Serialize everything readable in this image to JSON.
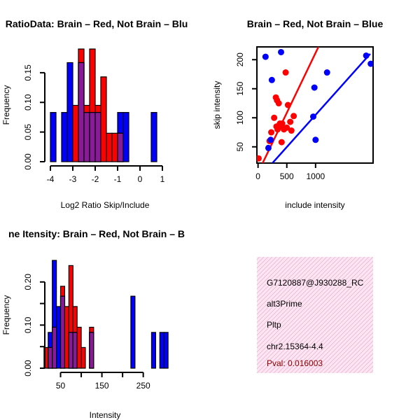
{
  "colors": {
    "red": "#ff0000",
    "blue": "#0000ff",
    "overlap": "#8b1a9a",
    "pval": "#8b0000",
    "info_bg": "#fbe3f2"
  },
  "chart_data": [
    {
      "id": "hist_ratio",
      "type": "bar",
      "title": "RatioData: Brain – Red, Not Brain – Blu",
      "xlabel": "Log2 Ratio Skip/Include",
      "ylabel": "Frequency",
      "xlim": [
        -4,
        1
      ],
      "ylim": [
        0,
        0.19
      ],
      "xticks": [
        -4,
        -3,
        -2,
        -1,
        0,
        1
      ],
      "yticks": [
        0.0,
        0.05,
        0.1,
        0.15
      ],
      "ytick_labels": [
        "0.00",
        "0.05",
        "0.10",
        "0.15"
      ],
      "bin_edges": [
        -4.0,
        -3.75,
        -3.5,
        -3.25,
        -3.0,
        -2.75,
        -2.5,
        -2.25,
        -2.0,
        -1.75,
        -1.5,
        -1.25,
        -1.0,
        -0.75,
        -0.5,
        -0.25,
        0.0,
        0.25,
        0.5,
        0.75,
        1.0
      ],
      "series": [
        {
          "name": "Brain",
          "color": "red",
          "values": [
            0,
            0,
            0,
            0,
            0.095,
            0.19,
            0.095,
            0.19,
            0.095,
            0.143,
            0.048,
            0.048,
            0.048,
            0,
            0,
            0,
            0,
            0,
            0,
            0
          ]
        },
        {
          "name": "Not Brain",
          "color": "blue",
          "values": [
            0.083,
            0,
            0.083,
            0.167,
            0,
            0.167,
            0.083,
            0.083,
            0.083,
            0,
            0,
            0,
            0.083,
            0.083,
            0,
            0,
            0,
            0,
            0.083,
            0
          ]
        }
      ]
    },
    {
      "id": "scatter_intensity",
      "type": "scatter",
      "title": "Brain – Red, Not Brain – Blue",
      "xlabel": "include intensity",
      "ylabel": "skip intensity",
      "xlim": [
        -20,
        2000
      ],
      "ylim": [
        22,
        222
      ],
      "xticks": [
        0,
        500,
        1000
      ],
      "yticks": [
        50,
        100,
        150,
        200
      ],
      "series": [
        {
          "name": "Brain",
          "color": "red",
          "points": [
            [
              10,
              30
            ],
            [
              200,
              60
            ],
            [
              230,
              75
            ],
            [
              280,
              100
            ],
            [
              310,
              135
            ],
            [
              330,
              130
            ],
            [
              360,
              125
            ],
            [
              340,
              80
            ],
            [
              380,
              90
            ],
            [
              400,
              85
            ],
            [
              420,
              90
            ],
            [
              450,
              80
            ],
            [
              480,
              178
            ],
            [
              500,
              83
            ],
            [
              520,
              122
            ],
            [
              560,
              93
            ],
            [
              580,
              78
            ],
            [
              620,
              103
            ],
            [
              320,
              85
            ],
            [
              410,
              58
            ]
          ],
          "fit_line": [
            [
              80,
              22
            ],
            [
              1050,
              222
            ]
          ]
        },
        {
          "name": "Not Brain",
          "color": "blue",
          "points": [
            [
              130,
              205
            ],
            [
              180,
              48
            ],
            [
              220,
              62
            ],
            [
              240,
              165
            ],
            [
              400,
              213
            ],
            [
              980,
              152
            ],
            [
              1000,
              62
            ],
            [
              960,
              102
            ],
            [
              1200,
              178
            ],
            [
              1880,
              207
            ],
            [
              1960,
              193
            ]
          ],
          "fit_line": [
            [
              250,
              22
            ],
            [
              1950,
              210
            ]
          ]
        }
      ]
    },
    {
      "id": "hist_intensity",
      "type": "bar",
      "title": "ne Itensity: Brain – Red, Not Brain – B",
      "xlabel": "Intensity",
      "ylabel": "Frequency",
      "xlim": [
        0,
        320
      ],
      "ylim": [
        0,
        0.25
      ],
      "xticks": [
        50,
        150,
        250
      ],
      "xtick_labels": [
        "50",
        "150",
        "250"
      ],
      "xtick_minor": [
        100,
        200
      ],
      "yticks": [
        0.0,
        0.1,
        0.2
      ],
      "ytick_labels": [
        "0.00",
        "0.10",
        "0.20"
      ],
      "yticks_minor": [
        0.05,
        0.15
      ],
      "bin_edges": [
        0,
        10,
        20,
        30,
        40,
        50,
        60,
        70,
        80,
        90,
        100,
        110,
        120,
        130,
        140,
        150,
        160,
        170,
        180,
        190,
        200,
        210,
        220,
        230,
        240,
        250,
        260,
        270,
        280,
        290,
        300,
        310,
        320
      ],
      "series": [
        {
          "name": "Brain",
          "color": "red",
          "values": [
            0,
            0.048,
            0.048,
            0.095,
            0,
            0.19,
            0.143,
            0.238,
            0.143,
            0.095,
            0.048,
            0,
            0.095,
            0,
            0,
            0,
            0,
            0,
            0,
            0,
            0,
            0,
            0,
            0,
            0,
            0,
            0,
            0,
            0,
            0,
            0,
            0
          ]
        },
        {
          "name": "Not Brain",
          "color": "blue",
          "values": [
            0,
            0,
            0.083,
            0.25,
            0.143,
            0.167,
            0,
            0.083,
            0.083,
            0,
            0,
            0,
            0.083,
            0,
            0,
            0,
            0,
            0,
            0,
            0,
            0,
            0,
            0.167,
            0,
            0,
            0,
            0,
            0.083,
            0,
            0.083,
            0.083,
            0
          ]
        }
      ]
    }
  ],
  "info_box": {
    "probe_id": "G7120887@J930288_RC",
    "event_type": "alt3Prime",
    "gene": "Pltp",
    "location": "chr2.15364-4.4",
    "pval": "Pval: 0.016003"
  }
}
